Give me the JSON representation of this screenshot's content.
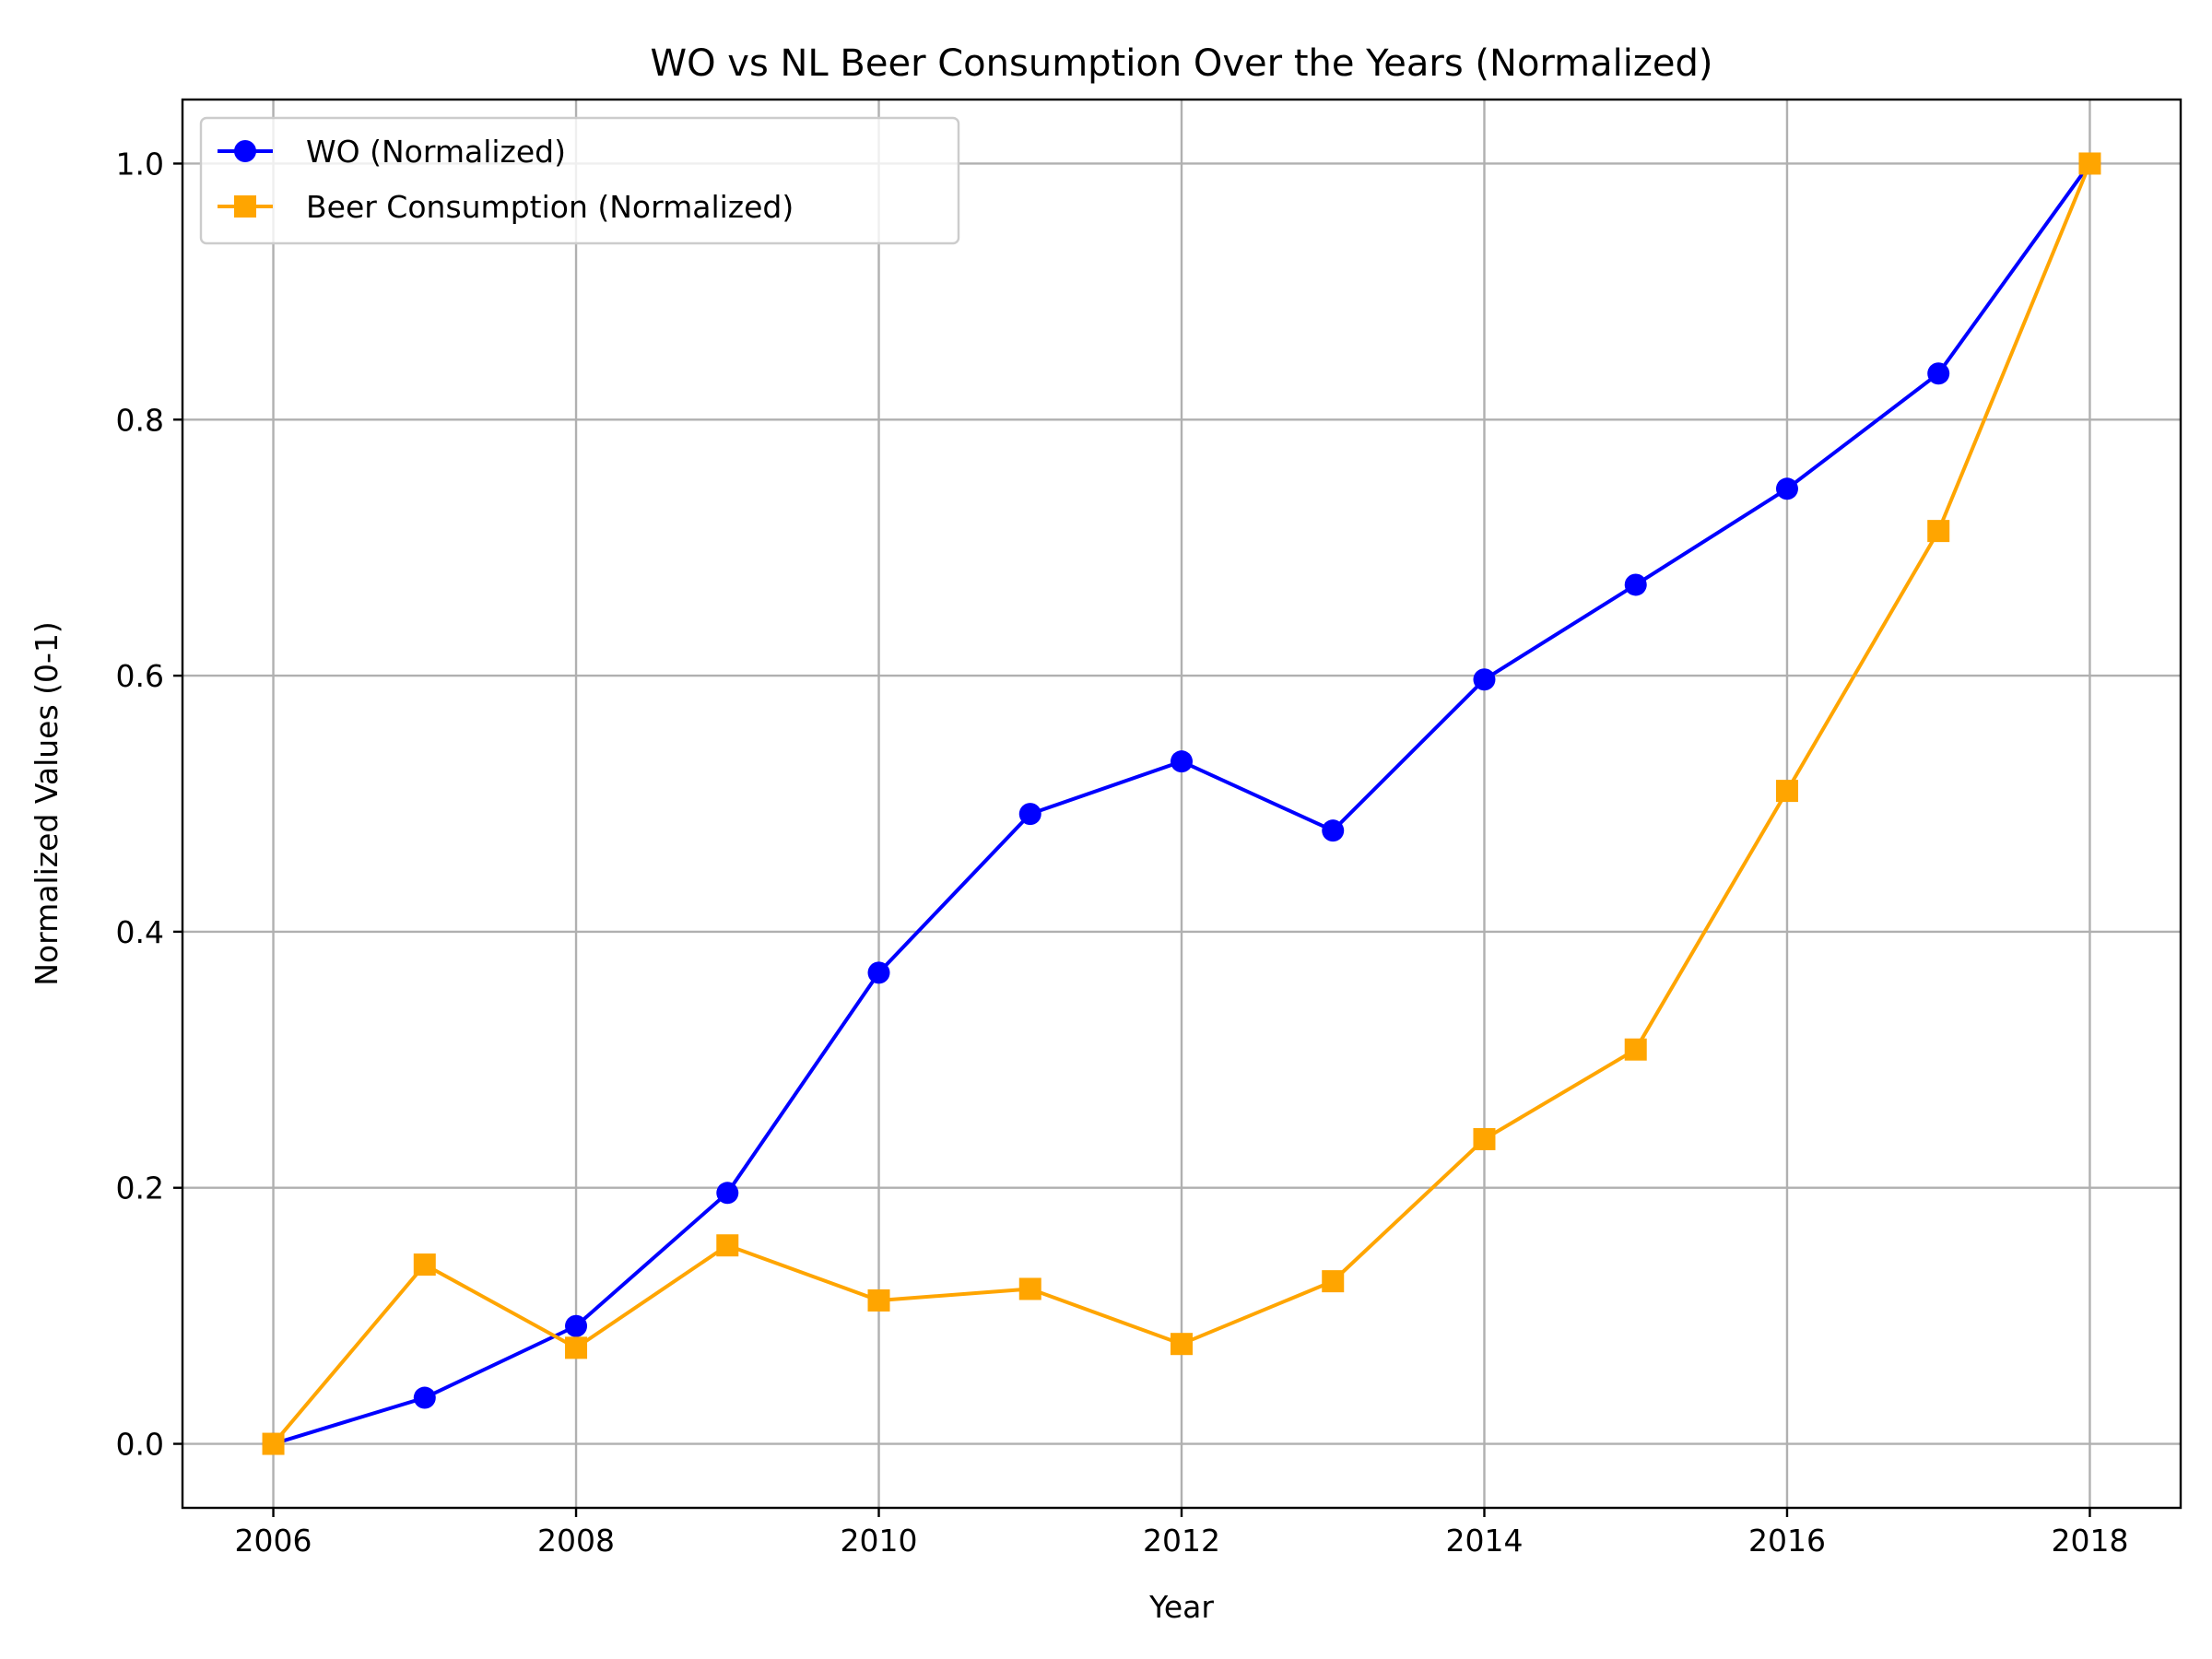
{
  "chart_data": {
    "type": "line",
    "title": "WO vs NL Beer Consumption Over the Years (Normalized)",
    "xlabel": "Year",
    "ylabel": "Normalized Values (0-1)",
    "x": [
      2006,
      2007,
      2008,
      2009,
      2010,
      2011,
      2012,
      2013,
      2014,
      2015,
      2016,
      2017,
      2018
    ],
    "xlim": [
      2005.4,
      2018.6
    ],
    "ylim": [
      -0.05,
      1.05
    ],
    "x_ticks": [
      2006,
      2008,
      2010,
      2012,
      2014,
      2016,
      2018
    ],
    "y_ticks": [
      0.0,
      0.2,
      0.4,
      0.6,
      0.8,
      1.0
    ],
    "x_tick_labels": [
      "2006",
      "2008",
      "2010",
      "2012",
      "2014",
      "2016",
      "2018"
    ],
    "y_tick_labels": [
      "0.0",
      "0.2",
      "0.4",
      "0.6",
      "0.8",
      "1.0"
    ],
    "grid": true,
    "legend_position": "top-left",
    "series": [
      {
        "name": "WO (Normalized)",
        "color": "#0000ff",
        "marker": "circle",
        "values": [
          0.0,
          0.036,
          0.092,
          0.196,
          0.368,
          0.492,
          0.533,
          0.479,
          0.597,
          0.671,
          0.746,
          0.836,
          1.0
        ]
      },
      {
        "name": "Beer Consumption (Normalized)",
        "color": "#ffa500",
        "marker": "square",
        "values": [
          0.0,
          0.14,
          0.075,
          0.155,
          0.112,
          0.121,
          0.078,
          0.127,
          0.238,
          0.308,
          0.51,
          0.713,
          1.0
        ]
      }
    ]
  }
}
